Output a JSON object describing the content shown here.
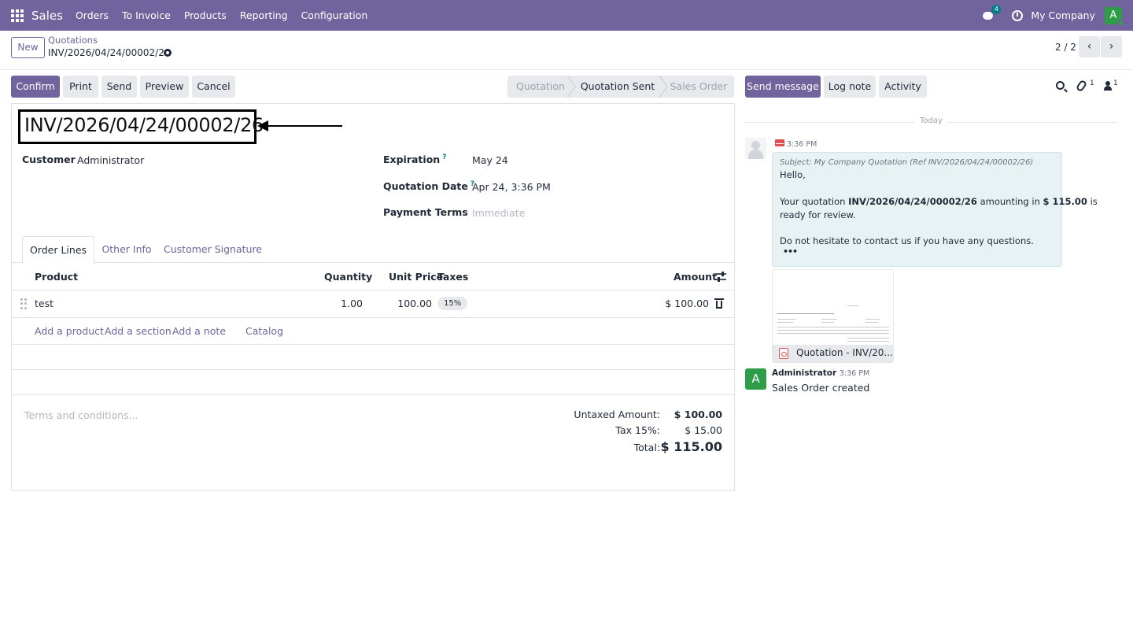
{
  "navbar": {
    "app_name": "Sales",
    "menu": [
      "Orders",
      "To Invoice",
      "Products",
      "Reporting",
      "Configuration"
    ],
    "chat_count": "4",
    "company": "My Company",
    "avatar_letter": "A",
    "bg_color": "#71639e"
  },
  "control": {
    "new_label": "New",
    "breadcrumb_parent": "Quotations",
    "breadcrumb_current": "INV/2026/04/24/00002/26",
    "pager": "2 / 2",
    "prev_icon": "‹",
    "next_icon": "›"
  },
  "actions": {
    "confirm": "Confirm",
    "print": "Print",
    "send": "Send",
    "preview": "Preview",
    "cancel": "Cancel"
  },
  "statusbar": {
    "stages": [
      "Quotation",
      "Quotation Sent",
      "Sales Order"
    ],
    "active": "Quotation Sent"
  },
  "form": {
    "title": "INV/2026/04/24/00002/26",
    "customer_label": "Customer",
    "customer_value": "Administrator",
    "expiration_label": "Expiration",
    "expiration_value": "May 24",
    "quotation_date_label": "Quotation Date",
    "quotation_date_value": "Apr 24, 3:36 PM",
    "payment_terms_label": "Payment Terms",
    "payment_terms_placeholder": "Immediate",
    "help_mark": "?"
  },
  "tabs": [
    "Order Lines",
    "Other Info",
    "Customer Signature"
  ],
  "table": {
    "headers": [
      "Product",
      "Quantity",
      "Unit Price",
      "Taxes",
      "Amount"
    ],
    "rows": [
      {
        "product": "test",
        "quantity": "1.00",
        "unit_price": "100.00",
        "taxes": "15%",
        "amount": "$ 100.00"
      }
    ],
    "add_links": [
      "Add a product",
      "Add a section",
      "Add a note",
      "Catalog"
    ]
  },
  "totals": {
    "terms_placeholder": "Terms and conditions...",
    "untaxed_label": "Untaxed Amount:",
    "untaxed_value": "$ 100.00",
    "tax_label": "Tax 15%:",
    "tax_value": "$ 15.00",
    "total_label": "Total:",
    "total_value": "$ 115.00"
  },
  "chatter": {
    "send_message": "Send message",
    "log_note": "Log note",
    "activity": "Activity",
    "attachment_count": "1",
    "follower_count": "1",
    "today": "Today",
    "message": {
      "time": "3:36 PM",
      "subject": "Subject: My Company Quotation (Ref INV/2026/04/24/00002/26)",
      "greeting": "Hello,",
      "body_pre": "Your quotation ",
      "body_ref": "INV/2026/04/24/00002/26",
      "body_mid": " amounting in ",
      "body_amount": "$ 115.00",
      "body_post": " is",
      "body_line2": "ready for review.",
      "closing": "Do not hesitate to contact us if you have any questions.",
      "more": "•••"
    },
    "attachment_name": "Quotation - INV/20...",
    "note": {
      "author": "Administrator",
      "time": "3:36 PM",
      "body": "Sales Order created",
      "avatar_letter": "A"
    }
  }
}
